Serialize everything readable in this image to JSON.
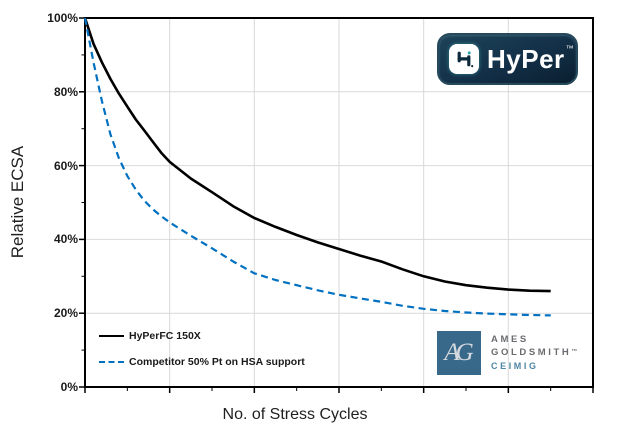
{
  "chart_data": {
    "type": "line",
    "title": "",
    "xlabel": "No. of Stress Cycles",
    "ylabel": "Relative ECSA",
    "x_axis": {
      "min": 0,
      "max": 6,
      "tick_labels_shown": false,
      "major_step": 1,
      "minor_step": 0.5,
      "unit": "stress cycles (no numeric labels shown)"
    },
    "y_axis": {
      "min": 0,
      "max": 100,
      "major_step": 20,
      "minor_step": 10,
      "tick_labels": [
        "0%",
        "20%",
        "40%",
        "60%",
        "80%",
        "100%"
      ],
      "unit": "%"
    },
    "grid": {
      "show": true,
      "color": "#d9d9d9"
    },
    "border_color": "#000000",
    "legend_position": "bottom-left-inside",
    "series": [
      {
        "name": "HyPerFC 150X",
        "color": "#000000",
        "style": "solid",
        "points": [
          [
            0,
            100
          ],
          [
            0.1,
            93
          ],
          [
            0.2,
            88
          ],
          [
            0.3,
            83.5
          ],
          [
            0.4,
            79.5
          ],
          [
            0.5,
            76
          ],
          [
            0.6,
            72.5
          ],
          [
            0.7,
            69.5
          ],
          [
            0.8,
            66.5
          ],
          [
            0.9,
            63.5
          ],
          [
            1,
            61
          ],
          [
            1.25,
            56.5
          ],
          [
            1.5,
            52.8
          ],
          [
            1.75,
            49
          ],
          [
            2,
            45.8
          ],
          [
            2.25,
            43.4
          ],
          [
            2.5,
            41.2
          ],
          [
            2.75,
            39.2
          ],
          [
            3,
            37.4
          ],
          [
            3.25,
            35.6
          ],
          [
            3.5,
            34
          ],
          [
            3.75,
            31.9
          ],
          [
            4,
            30
          ],
          [
            4.25,
            28.6
          ],
          [
            4.5,
            27.6
          ],
          [
            4.75,
            26.9
          ],
          [
            5,
            26.4
          ],
          [
            5.25,
            26.1
          ],
          [
            5.5,
            26
          ]
        ]
      },
      {
        "name": "Competitor 50% Pt on HSA support",
        "color": "#0070C0",
        "style": "dashed",
        "points": [
          [
            0,
            100
          ],
          [
            0.1,
            88
          ],
          [
            0.2,
            77.5
          ],
          [
            0.3,
            68.5
          ],
          [
            0.4,
            62
          ],
          [
            0.5,
            57.2
          ],
          [
            0.6,
            53.5
          ],
          [
            0.7,
            50.5
          ],
          [
            0.8,
            48.2
          ],
          [
            0.9,
            46.3
          ],
          [
            1,
            44.6
          ],
          [
            1.25,
            41
          ],
          [
            1.5,
            37.6
          ],
          [
            1.75,
            34
          ],
          [
            2,
            30.8
          ],
          [
            2.25,
            29
          ],
          [
            2.5,
            27.6
          ],
          [
            2.75,
            26.2
          ],
          [
            3,
            25
          ],
          [
            3.25,
            24
          ],
          [
            3.5,
            23.1
          ],
          [
            3.75,
            22
          ],
          [
            4,
            21.2
          ],
          [
            4.25,
            20.6
          ],
          [
            4.5,
            20.2
          ],
          [
            4.75,
            19.9
          ],
          [
            5,
            19.7
          ],
          [
            5.25,
            19.5
          ],
          [
            5.5,
            19.4
          ]
        ]
      }
    ]
  },
  "logos": {
    "hyper": {
      "wordmark": "HyPer",
      "trademark": "™",
      "icon": "h2-molecule-icon",
      "bg_color": "#133048",
      "text_color": "#ffffff"
    },
    "ames_goldsmith": {
      "monogram": "AG",
      "line1": "AMES",
      "line2": "GOLDSMITH",
      "line2_tm": "™",
      "line3": "CEIMIG",
      "square_color": "#38698a",
      "text_color": "#6a6c70",
      "ceimig_color": "#4e86a4"
    }
  }
}
